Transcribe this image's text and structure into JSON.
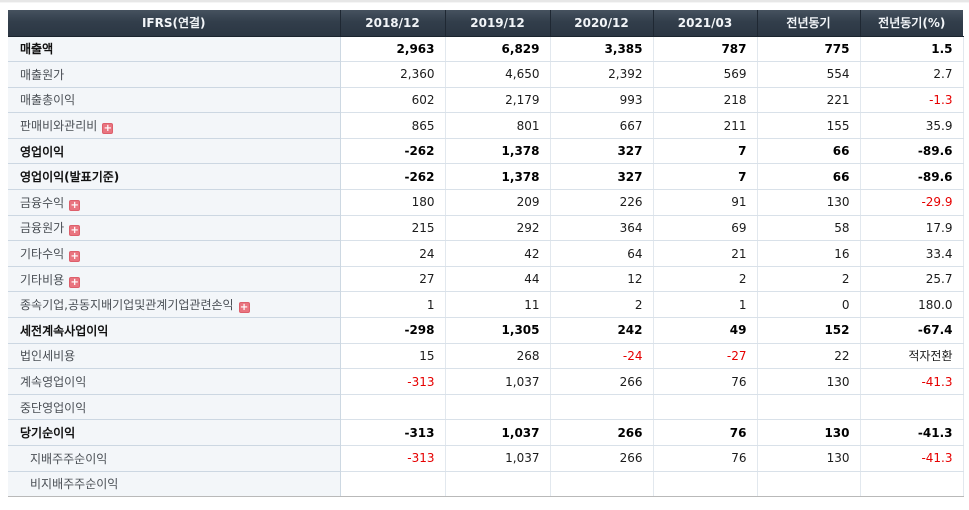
{
  "colors": {
    "header_bg": "#323e4b",
    "header_text": "#f2f5f8",
    "label_col_bg": "#f3f6f9",
    "negative_value": "#e60000",
    "expand_icon_bg": "#e97580"
  },
  "icons": {
    "expand_icon_glyph": "+"
  },
  "table": {
    "header": {
      "label": "IFRS(연결)",
      "columns": [
        "2018/12",
        "2019/12",
        "2020/12",
        "2021/03",
        "전년동기",
        "전년동기(%)"
      ]
    },
    "rows": [
      {
        "label": "매출액",
        "bold": true,
        "icon": false,
        "indent": false,
        "values": [
          "2,963",
          "6,829",
          "3,385",
          "787",
          "775",
          "1.5"
        ]
      },
      {
        "label": "매출원가",
        "bold": false,
        "icon": false,
        "indent": false,
        "values": [
          "2,360",
          "4,650",
          "2,392",
          "569",
          "554",
          "2.7"
        ]
      },
      {
        "label": "매출총이익",
        "bold": false,
        "icon": false,
        "indent": false,
        "values": [
          "602",
          "2,179",
          "993",
          "218",
          "221",
          "-1.3"
        ]
      },
      {
        "label": "판매비와관리비",
        "bold": false,
        "icon": true,
        "indent": false,
        "values": [
          "865",
          "801",
          "667",
          "211",
          "155",
          "35.9"
        ]
      },
      {
        "label": "영업이익",
        "bold": true,
        "icon": false,
        "indent": false,
        "values": [
          "-262",
          "1,378",
          "327",
          "7",
          "66",
          "-89.6"
        ]
      },
      {
        "label": "영업이익(발표기준)",
        "bold": true,
        "icon": false,
        "indent": false,
        "values": [
          "-262",
          "1,378",
          "327",
          "7",
          "66",
          "-89.6"
        ]
      },
      {
        "label": "금융수익",
        "bold": false,
        "icon": true,
        "indent": false,
        "values": [
          "180",
          "209",
          "226",
          "91",
          "130",
          "-29.9"
        ]
      },
      {
        "label": "금융원가",
        "bold": false,
        "icon": true,
        "indent": false,
        "values": [
          "215",
          "292",
          "364",
          "69",
          "58",
          "17.9"
        ]
      },
      {
        "label": "기타수익",
        "bold": false,
        "icon": true,
        "indent": false,
        "values": [
          "24",
          "42",
          "64",
          "21",
          "16",
          "33.4"
        ]
      },
      {
        "label": "기타비용",
        "bold": false,
        "icon": true,
        "indent": false,
        "values": [
          "27",
          "44",
          "12",
          "2",
          "2",
          "25.7"
        ]
      },
      {
        "label": "종속기업,공동지배기업및관계기업관련손익",
        "bold": false,
        "icon": true,
        "indent": false,
        "values": [
          "1",
          "11",
          "2",
          "1",
          "0",
          "180.0"
        ]
      },
      {
        "label": "세전계속사업이익",
        "bold": true,
        "icon": false,
        "indent": false,
        "values": [
          "-298",
          "1,305",
          "242",
          "49",
          "152",
          "-67.4"
        ]
      },
      {
        "label": "법인세비용",
        "bold": false,
        "icon": false,
        "indent": false,
        "values": [
          "15",
          "268",
          "-24",
          "-27",
          "22",
          "적자전환"
        ]
      },
      {
        "label": "계속영업이익",
        "bold": false,
        "icon": false,
        "indent": false,
        "values": [
          "-313",
          "1,037",
          "266",
          "76",
          "130",
          "-41.3"
        ]
      },
      {
        "label": "중단영업이익",
        "bold": false,
        "icon": false,
        "indent": false,
        "values": [
          "",
          "",
          "",
          "",
          "",
          ""
        ]
      },
      {
        "label": "당기순이익",
        "bold": true,
        "icon": false,
        "indent": false,
        "values": [
          "-313",
          "1,037",
          "266",
          "76",
          "130",
          "-41.3"
        ]
      },
      {
        "label": "지배주주순이익",
        "bold": false,
        "icon": false,
        "indent": true,
        "values": [
          "-313",
          "1,037",
          "266",
          "76",
          "130",
          "-41.3"
        ]
      },
      {
        "label": "비지배주주순이익",
        "bold": false,
        "icon": false,
        "indent": true,
        "values": [
          "",
          "",
          "",
          "",
          "",
          ""
        ]
      }
    ]
  }
}
